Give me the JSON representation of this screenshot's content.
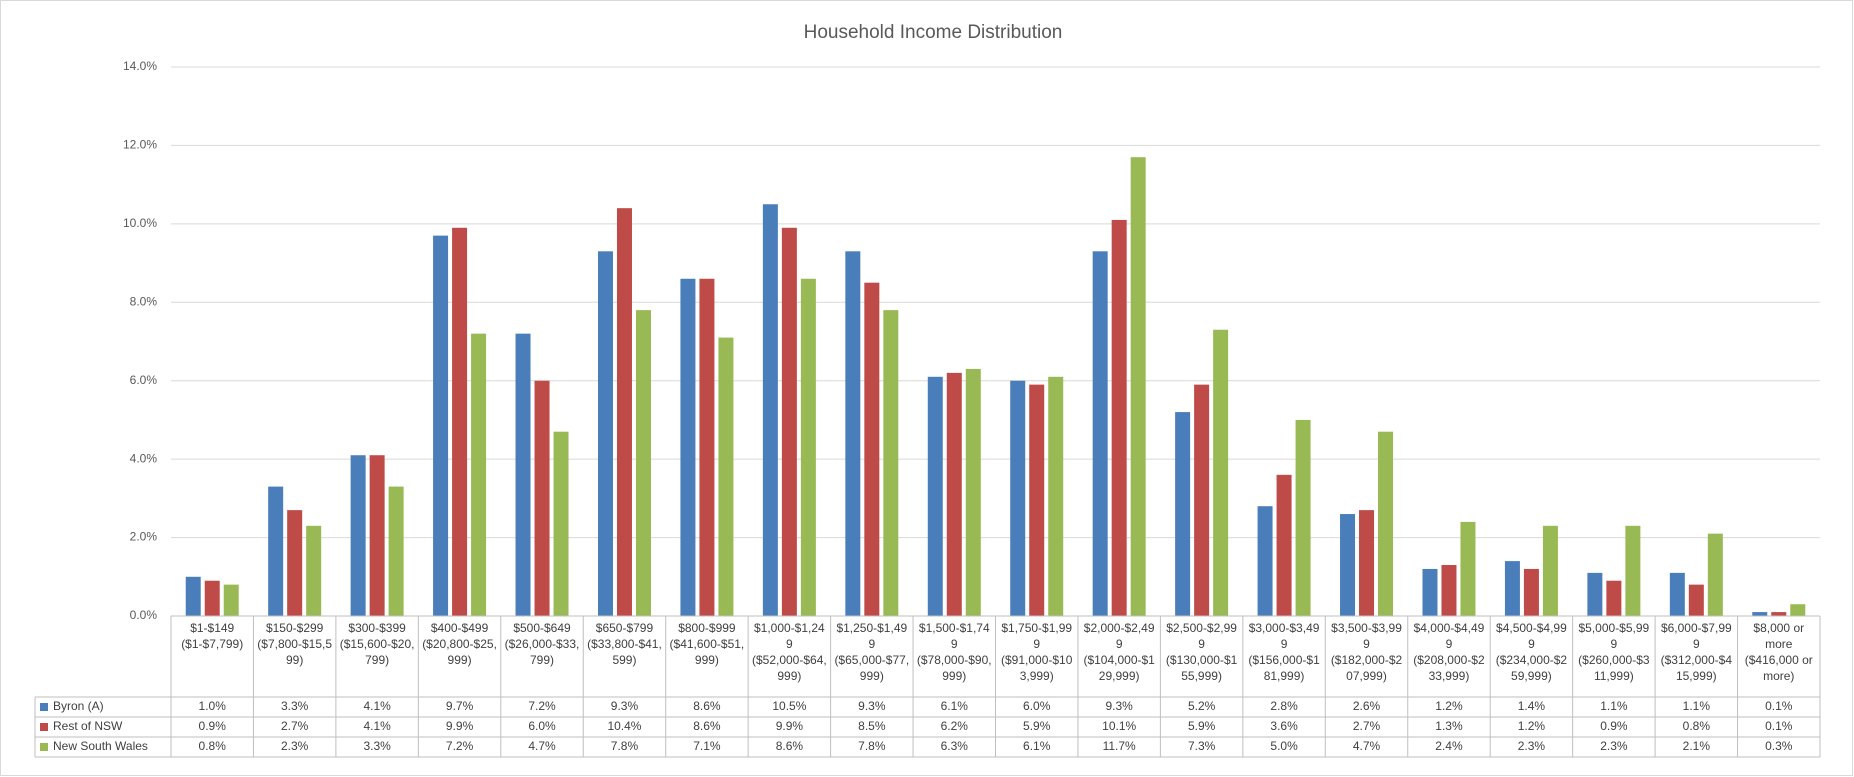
{
  "chart_data": {
    "type": "bar",
    "title": "Household Income Distribution",
    "categories": [
      "$1-$149 ($1-$7,799)",
      "$150-$299 ($7,800-$15,599)",
      "$300-$399 ($15,600-$20,799)",
      "$400-$499 ($20,800-$25,999)",
      "$500-$649 ($26,000-$33,799)",
      "$650-$799 ($33,800-$41,599)",
      "$800-$999 ($41,600-$51,999)",
      "$1,000-$1,249 ($52,000-$64,999)",
      "$1,250-$1,499 ($65,000-$77,999)",
      "$1,500-$1,749 ($78,000-$90,999)",
      "$1,750-$1,999 ($91,000-$103,999)",
      "$2,000-$2,499 ($104,000-$129,999)",
      "$2,500-$2,999 ($130,000-$155,999)",
      "$3,000-$3,499 ($156,000-$181,999)",
      "$3,500-$3,999 ($182,000-$207,999)",
      "$4,000-$4,499 ($208,000-$233,999)",
      "$4,500-$4,999 ($234,000-$259,999)",
      "$5,000-$5,999 ($260,000-$311,999)",
      "$6,000-$7,999 ($312,000-$415,999)",
      "$8,000 or more ($416,000 or more)"
    ],
    "series": [
      {
        "name": "Byron (A)",
        "color": "#4a7ebb",
        "values": [
          1.0,
          3.3,
          4.1,
          9.7,
          7.2,
          9.3,
          8.6,
          10.5,
          9.3,
          6.1,
          6.0,
          9.3,
          5.2,
          2.8,
          2.6,
          1.2,
          1.4,
          1.1,
          1.1,
          0.1
        ],
        "value_labels": [
          "1.0%",
          "3.3%",
          "4.1%",
          "9.7%",
          "7.2%",
          "9.3%",
          "8.6%",
          "10.5%",
          "9.3%",
          "6.1%",
          "6.0%",
          "9.3%",
          "5.2%",
          "2.8%",
          "2.6%",
          "1.2%",
          "1.4%",
          "1.1%",
          "1.1%",
          "0.1%"
        ]
      },
      {
        "name": "Rest of NSW",
        "color": "#be4b48",
        "values": [
          0.9,
          2.7,
          4.1,
          9.9,
          6.0,
          10.4,
          8.6,
          9.9,
          8.5,
          6.2,
          5.9,
          10.1,
          5.9,
          3.6,
          2.7,
          1.3,
          1.2,
          0.9,
          0.8,
          0.1
        ],
        "value_labels": [
          "0.9%",
          "2.7%",
          "4.1%",
          "9.9%",
          "6.0%",
          "10.4%",
          "8.6%",
          "9.9%",
          "8.5%",
          "6.2%",
          "5.9%",
          "10.1%",
          "5.9%",
          "3.6%",
          "2.7%",
          "1.3%",
          "1.2%",
          "0.9%",
          "0.8%",
          "0.1%"
        ]
      },
      {
        "name": "New South Wales",
        "color": "#98b954",
        "values": [
          0.8,
          2.3,
          3.3,
          7.2,
          4.7,
          7.8,
          7.1,
          8.6,
          7.8,
          6.3,
          6.1,
          11.7,
          7.3,
          5.0,
          4.7,
          2.4,
          2.3,
          2.3,
          2.1,
          0.3
        ],
        "value_labels": [
          "0.8%",
          "2.3%",
          "3.3%",
          "7.2%",
          "4.7%",
          "7.8%",
          "7.1%",
          "8.6%",
          "7.8%",
          "6.3%",
          "6.1%",
          "11.7%",
          "7.3%",
          "5.0%",
          "4.7%",
          "2.4%",
          "2.3%",
          "2.3%",
          "2.1%",
          "0.3%"
        ]
      }
    ],
    "ylim": [
      0,
      14
    ],
    "yticks": [
      {
        "value": 0,
        "label": "0.0%"
      },
      {
        "value": 2,
        "label": "2.0%"
      },
      {
        "value": 4,
        "label": "4.0%"
      },
      {
        "value": 6,
        "label": "6.0%"
      },
      {
        "value": 8,
        "label": "8.0%"
      },
      {
        "value": 10,
        "label": "10.0%"
      },
      {
        "value": 12,
        "label": "12.0%"
      },
      {
        "value": 14,
        "label": "14.0%"
      }
    ],
    "grid": true
  }
}
